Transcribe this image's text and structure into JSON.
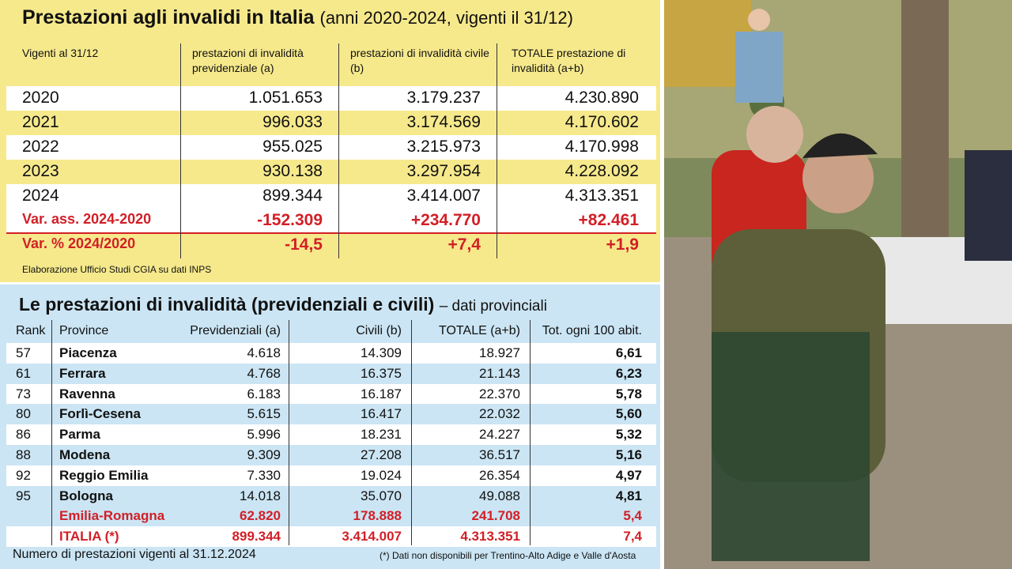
{
  "top": {
    "title": "Prestazioni agli invalidi in Italia",
    "title_suffix": "(anni 2020-2024, vigenti il 31/12)",
    "headers": [
      "Vigenti al 31/12",
      "prestazioni di invalidità previdenziale (a)",
      "prestazioni di invalidità civile (b)",
      "TOTALE prestazione di invalidità (a+b)"
    ],
    "rows": [
      [
        "2020",
        "1.051.653",
        "3.179.237",
        "4.230.890"
      ],
      [
        "2021",
        "996.033",
        "3.174.569",
        "4.170.602"
      ],
      [
        "2022",
        "955.025",
        "3.215.973",
        "4.170.998"
      ],
      [
        "2023",
        "930.138",
        "3.297.954",
        "4.228.092"
      ],
      [
        "2024",
        "899.344",
        "3.414.007",
        "4.313.351"
      ]
    ],
    "variations": [
      [
        "Var. ass. 2024-2020",
        "-152.309",
        "+234.770",
        "+82.461"
      ],
      [
        "Var. % 2024/2020",
        "-14,5",
        "+7,4",
        "+1,9"
      ]
    ],
    "source": "Elaborazione Ufficio Studi CGIA su dati INPS"
  },
  "bottom": {
    "title": "Le prestazioni di invalidità (previdenziali e civili)",
    "title_suffix": "– dati provinciali",
    "headers": [
      "Rank",
      "Province",
      "Previdenziali (a)",
      "Civili (b)",
      "TOTALE (a+b)",
      "Tot. ogni 100 abit."
    ],
    "rows": [
      [
        "57",
        "Piacenza",
        "4.618",
        "14.309",
        "18.927",
        "6,61"
      ],
      [
        "61",
        "Ferrara",
        "4.768",
        "16.375",
        "21.143",
        "6,23"
      ],
      [
        "73",
        "Ravenna",
        "6.183",
        "16.187",
        "22.370",
        "5,78"
      ],
      [
        "80",
        "Forlì-Cesena",
        "5.615",
        "16.417",
        "22.032",
        "5,60"
      ],
      [
        "86",
        "Parma",
        "5.996",
        "18.231",
        "24.227",
        "5,32"
      ],
      [
        "88",
        "Modena",
        "9.309",
        "27.208",
        "36.517",
        "5,16"
      ],
      [
        "92",
        "Reggio Emilia",
        "7.330",
        "19.024",
        "26.354",
        "4,97"
      ],
      [
        "95",
        "Bologna",
        "14.018",
        "35.070",
        "49.088",
        "4,81"
      ]
    ],
    "totals": [
      [
        "Emilia-Romagna",
        "62.820",
        "178.888",
        "241.708",
        "5,4"
      ],
      [
        "ITALIA (*)",
        "899.344",
        "3.414.007",
        "4.313.351",
        "7,4"
      ]
    ],
    "note_left": "Numero di prestazioni vigenti al 31.12.2024",
    "note_right": "(*) Dati non disponibili per Trentino-Alto Adige e Valle d'Aosta"
  }
}
